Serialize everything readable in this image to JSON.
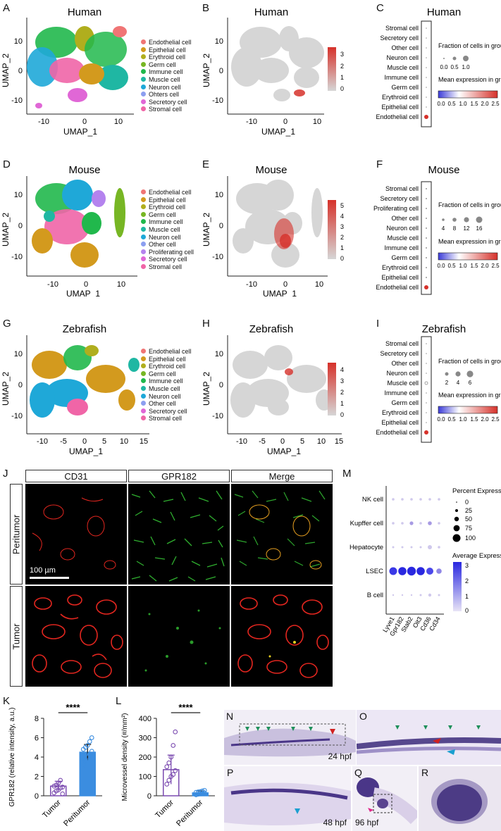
{
  "colors": {
    "endothelial": "#f07575",
    "epithelial": "#d39a1e",
    "erythroid": "#b0ae1e",
    "germ": "#77b624",
    "immune": "#21b84c",
    "muscle": "#1fb7a3",
    "neuron": "#1fa8d8",
    "other": "#8c9ff0",
    "proliferating": "#b483ee",
    "secretory": "#e067d6",
    "stromal": "#f065a7",
    "expr_low": "#d6d6d6",
    "expr_high": "#d6312a",
    "cd31": "#e3261f",
    "gpr182": "#35c235",
    "tumor_bar": "#7b4bb0",
    "peritumor_bar": "#3b8de0",
    "stain": "#3c2a7a",
    "arrow_green": "#1e8f5a",
    "arrow_red": "#d02020",
    "arrow_blue": "#1a9fd0"
  },
  "panels": {
    "A": {
      "letter": "A",
      "title": "Human",
      "xlabel": "UMAP_1",
      "ylabel": "UMAP_2",
      "legend": [
        "Endothelial cell",
        "Epithelial cell",
        "Erythroid cell",
        "Germ cell",
        "Immune cell",
        "Muscle cell",
        "Neuron cell",
        "Ohters cell",
        "Secretory cell",
        "Stromal cell"
      ],
      "xticks": [
        "-10",
        "0",
        "10"
      ],
      "yticks": [
        "10",
        "0",
        "-10"
      ]
    },
    "B": {
      "letter": "B",
      "title": "Human",
      "xlabel": "UMAP_1",
      "ylabel": "UMAP_2",
      "xticks": [
        "-10",
        "0",
        "10"
      ],
      "yticks": [
        "10",
        "0",
        "-10"
      ],
      "scale": [
        "3",
        "2",
        "1",
        "0"
      ]
    },
    "C": {
      "letter": "C",
      "title": "Human",
      "rows": [
        "Stromal cell",
        "Secretory cell",
        "Other cell",
        "Neuron cell",
        "Muscle cell",
        "Immune cell",
        "Germ cell",
        "Erythroid cell",
        "Epithelial cell",
        "Endothelial cell"
      ],
      "frac_title": "Fraction of cells in group (%)",
      "frac_ticks": [
        "0.0",
        "0.5",
        "1.0"
      ],
      "mean_title": "Mean expression in group",
      "mean_ticks": [
        "0.0",
        "0.5",
        "1.0",
        "1.5",
        "2.0",
        "2.5"
      ]
    },
    "D": {
      "letter": "D",
      "title": "Mouse",
      "xlabel": "UMAP_1",
      "ylabel": "UMAP_2",
      "legend": [
        "Endothelial cell",
        "Epithelial cell",
        "Erythroid cell",
        "Germ cell",
        "Immune cell",
        "Muscle cell",
        "Neuron cell",
        "Other cell",
        "Proliferating cell",
        "Secretory cell",
        "Stromal cell"
      ],
      "xticks": [
        "-10",
        "0",
        "10"
      ],
      "yticks": [
        "10",
        "0",
        "-10"
      ]
    },
    "E": {
      "letter": "E",
      "title": "Mouse",
      "xlabel": "UMAP_1",
      "ylabel": "UMAP_2",
      "xticks": [
        "-10",
        "0",
        "10"
      ],
      "yticks": [
        "10",
        "0",
        "-10"
      ],
      "scale": [
        "5",
        "4",
        "3",
        "2",
        "1",
        "0"
      ]
    },
    "F": {
      "letter": "F",
      "title": "Mouse",
      "rows": [
        "Stromal cell",
        "Secretory cell",
        "Proliferating cell",
        "Other cell",
        "Neuron cell",
        "Muscle cell",
        "Immune cell",
        "Germ cell",
        "Erythroid cell",
        "Epithelial cell",
        "Endothelial cell"
      ],
      "frac_title": "Fraction of cells in group (%)",
      "frac_ticks": [
        "4",
        "8",
        "12",
        "16"
      ],
      "mean_title": "Mean expression in group",
      "mean_ticks": [
        "0.0",
        "0.5",
        "1.0",
        "1.5",
        "2.0",
        "2.5"
      ]
    },
    "G": {
      "letter": "G",
      "title": "Zebrafish",
      "xlabel": "UMAP_1",
      "ylabel": "UMAP_2",
      "legend": [
        "Endothelial cell",
        "Epithelial cell",
        "Erythroid cell",
        "Germ cell",
        "Immune cell",
        "Muscle cell",
        "Neuron cell",
        "Other cell",
        "Secretory cell",
        "Stromal cell"
      ],
      "xticks": [
        "-10",
        "-5",
        "0",
        "5",
        "10",
        "15"
      ],
      "yticks": [
        "10",
        "0",
        "-10"
      ]
    },
    "H": {
      "letter": "H",
      "title": "Zebrafish",
      "xlabel": "UMAP_1",
      "ylabel": "UMAP_2",
      "xticks": [
        "-10",
        "-5",
        "0",
        "5",
        "10",
        "15"
      ],
      "yticks": [
        "10",
        "0",
        "-10"
      ],
      "scale": [
        "4",
        "3",
        "2",
        "1",
        "0"
      ]
    },
    "I": {
      "letter": "I",
      "title": "Zebrafish",
      "rows": [
        "Stromal cell",
        "Secretory cell",
        "Other cell",
        "Neuron cell",
        "Muscle cell",
        "Immune cell",
        "Germ cell",
        "Erythroid cell",
        "Epithelial cell",
        "Endothelial cell"
      ],
      "frac_title": "Fraction of cells in group (%)",
      "frac_ticks": [
        "2",
        "4",
        "6"
      ],
      "mean_title": "Mean expression in group",
      "mean_ticks": [
        "0.0",
        "0.5",
        "1.0",
        "1.5",
        "2.0",
        "2.5"
      ]
    },
    "J": {
      "letter": "J",
      "cols": [
        "CD31",
        "GPR182",
        "Merge"
      ],
      "rows": [
        "Peritumor",
        "Tumor"
      ],
      "scalebar": "100 µm"
    },
    "M": {
      "letter": "M",
      "rows": [
        "NK cell",
        "Kupffer cell",
        "Hepatocyte",
        "LSEC",
        "B cell"
      ],
      "genes": [
        "Lyve1",
        "Gpr182",
        "Stab2",
        "Oit3",
        "Cd36",
        "Cd34"
      ],
      "pct_title": "Percent Expressed",
      "pct_ticks": [
        "0",
        "25",
        "50",
        "75",
        "100"
      ],
      "avg_title": "Average Expression",
      "avg_ticks": [
        "3",
        "2",
        "1",
        "0"
      ]
    },
    "K": {
      "letter": "K",
      "sig": "****"
    },
    "L": {
      "letter": "L",
      "sig": "****"
    },
    "N": {
      "letter": "N",
      "stage": "24 hpf"
    },
    "O": {
      "letter": "O"
    },
    "P": {
      "letter": "P",
      "stage": "48 hpf"
    },
    "Q": {
      "letter": "Q",
      "stage": "96 hpf"
    },
    "R": {
      "letter": "R"
    }
  },
  "chart_data": [
    {
      "type": "bar",
      "panel": "K",
      "categories": [
        "Tumor",
        "Peritumor"
      ],
      "values": [
        1.0,
        4.5
      ],
      "errors": [
        0.5,
        0.8
      ],
      "points": [
        [
          0.3,
          0.5,
          0.6,
          0.8,
          0.9,
          1.0,
          1.1,
          1.3,
          1.6,
          0.2
        ],
        [
          3.2,
          3.6,
          4.0,
          4.3,
          4.6,
          4.8,
          5.0,
          5.2,
          5.6,
          6.0
        ]
      ],
      "ylabel": "GPR182 (relative intensity, a.u.)",
      "yticks": [
        0,
        2,
        4,
        6,
        8
      ],
      "ylim": [
        0,
        8
      ],
      "significance": "****"
    },
    {
      "type": "bar",
      "panel": "L",
      "categories": [
        "Tumor",
        "Peritumor"
      ],
      "values": [
        135,
        15
      ],
      "errors": [
        75,
        10
      ],
      "points": [
        [
          60,
          80,
          100,
          110,
          130,
          150,
          170,
          200,
          260,
          330
        ],
        [
          5,
          8,
          10,
          12,
          15,
          18,
          20,
          22,
          25,
          28
        ]
      ],
      "ylabel": "Microvessel density (#/mm²)",
      "yticks": [
        0,
        100,
        200,
        300,
        400
      ],
      "ylim": [
        0,
        400
      ],
      "significance": "****"
    }
  ]
}
